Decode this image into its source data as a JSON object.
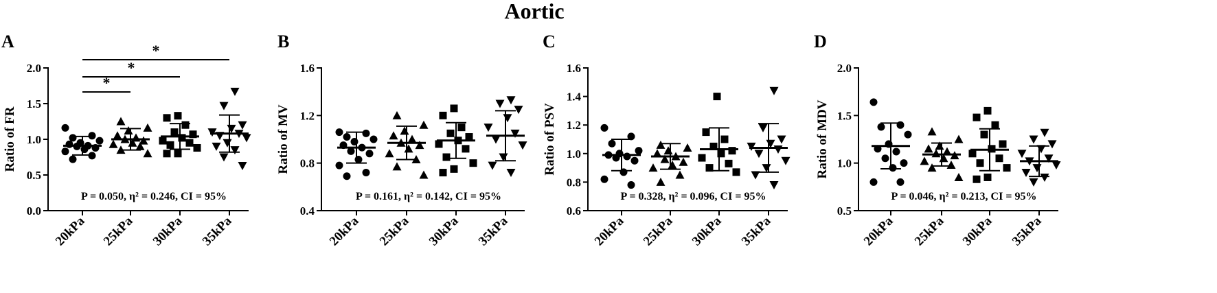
{
  "figure": {
    "title": "Aortic",
    "colors": {
      "ink": "#000000",
      "axis": "#000000",
      "background": "#ffffff"
    }
  },
  "chart_data": [
    {
      "panel": "A",
      "type": "scatter",
      "categories": [
        "20kPa",
        "25kPa",
        "30kPa",
        "35kPa"
      ],
      "markers": [
        "circle",
        "triangle-up",
        "square",
        "triangle-down"
      ],
      "ylabel": "Ratio of FR",
      "ylim": [
        0.0,
        2.0
      ],
      "yticks": [
        "0.0",
        "0.5",
        "1.0",
        "1.5",
        "2.0"
      ],
      "stats_text": "P = 0.050, η² = 0.246, CI = 95%",
      "groups": [
        {
          "mean": 0.91,
          "sd": 0.13,
          "points": [
            1.16,
            1.05,
            1.02,
            0.98,
            0.95,
            0.93,
            0.91,
            0.9,
            0.88,
            0.86,
            0.83,
            0.77,
            0.72
          ]
        },
        {
          "mean": 1.0,
          "sd": 0.15,
          "points": [
            1.25,
            1.16,
            1.12,
            1.05,
            1.02,
            1.0,
            0.98,
            0.95,
            0.93,
            0.9,
            0.85,
            0.8
          ]
        },
        {
          "mean": 1.04,
          "sd": 0.18,
          "points": [
            1.33,
            1.3,
            1.2,
            1.1,
            1.07,
            1.02,
            0.98,
            0.95,
            0.92,
            0.88,
            0.8,
            0.8
          ]
        },
        {
          "mean": 1.08,
          "sd": 0.26,
          "points": [
            1.67,
            1.47,
            1.2,
            1.15,
            1.1,
            1.08,
            1.05,
            1.02,
            0.95,
            0.9,
            0.85,
            0.75,
            0.63
          ]
        }
      ],
      "significance": [
        {
          "from": 0,
          "to": 1,
          "label": "*"
        },
        {
          "from": 0,
          "to": 2,
          "label": "*"
        },
        {
          "from": 0,
          "to": 3,
          "label": "*"
        }
      ]
    },
    {
      "panel": "B",
      "type": "scatter",
      "categories": [
        "20kPa",
        "25kPa",
        "30kPa",
        "35kPa"
      ],
      "markers": [
        "circle",
        "triangle-up",
        "square",
        "triangle-down"
      ],
      "ylabel": "Ratio of MV",
      "ylim": [
        0.4,
        1.6
      ],
      "yticks": [
        "0.4",
        "0.8",
        "1.2",
        "1.6"
      ],
      "stats_text": "P = 0.161, η² = 0.142, CI = 95%",
      "groups": [
        {
          "mean": 0.93,
          "sd": 0.13,
          "points": [
            1.06,
            1.05,
            1.02,
            1.0,
            0.98,
            0.95,
            0.93,
            0.9,
            0.88,
            0.83,
            0.78,
            0.72,
            0.69
          ]
        },
        {
          "mean": 0.97,
          "sd": 0.14,
          "points": [
            1.2,
            1.12,
            1.07,
            1.03,
            1.0,
            0.97,
            0.95,
            0.92,
            0.88,
            0.83,
            0.77,
            0.7
          ]
        },
        {
          "mean": 0.99,
          "sd": 0.15,
          "points": [
            1.26,
            1.2,
            1.1,
            1.05,
            1.02,
            0.99,
            0.96,
            0.92,
            0.85,
            0.8,
            0.75,
            0.72
          ]
        },
        {
          "mean": 1.03,
          "sd": 0.21,
          "points": [
            1.33,
            1.3,
            1.25,
            1.18,
            1.1,
            1.05,
            1.0,
            0.95,
            0.85,
            0.78,
            0.72
          ]
        }
      ],
      "significance": []
    },
    {
      "panel": "C",
      "type": "scatter",
      "categories": [
        "20kPa",
        "25kPa",
        "30kPa",
        "35kPa"
      ],
      "markers": [
        "circle",
        "triangle-up",
        "square",
        "triangle-down"
      ],
      "ylabel": "Ratio of PSV",
      "ylim": [
        0.6,
        1.6
      ],
      "yticks": [
        "0.6",
        "0.8",
        "1.0",
        "1.2",
        "1.4",
        "1.6"
      ],
      "stats_text": "P = 0.328, η² = 0.096, CI = 95%",
      "groups": [
        {
          "mean": 0.99,
          "sd": 0.11,
          "points": [
            1.18,
            1.12,
            1.07,
            1.02,
            1.0,
            0.99,
            0.98,
            0.97,
            0.95,
            0.87,
            0.82,
            0.78
          ]
        },
        {
          "mean": 0.98,
          "sd": 0.09,
          "points": [
            1.06,
            1.04,
            1.02,
            1.0,
            0.98,
            0.96,
            0.94,
            0.92,
            0.9,
            0.85,
            0.8
          ]
        },
        {
          "mean": 1.03,
          "sd": 0.15,
          "points": [
            1.4,
            1.15,
            1.1,
            1.05,
            1.02,
            1.0,
            0.97,
            0.93,
            0.9,
            0.87
          ]
        },
        {
          "mean": 1.04,
          "sd": 0.17,
          "points": [
            1.44,
            1.18,
            1.1,
            1.07,
            1.05,
            1.03,
            1.0,
            0.95,
            0.9,
            0.85,
            0.78
          ]
        }
      ],
      "significance": []
    },
    {
      "panel": "D",
      "type": "scatter",
      "categories": [
        "20kPa",
        "25kPa",
        "30kPa",
        "35kPa"
      ],
      "markers": [
        "circle",
        "triangle-up",
        "square",
        "triangle-down"
      ],
      "ylabel": "Ratio of MDV",
      "ylim": [
        0.5,
        2.0
      ],
      "yticks": [
        "0.5",
        "1.0",
        "1.5",
        "2.0"
      ],
      "stats_text": "P = 0.046, η² = 0.213, CI = 95%",
      "groups": [
        {
          "mean": 1.18,
          "sd": 0.24,
          "points": [
            1.64,
            1.4,
            1.38,
            1.3,
            1.2,
            1.15,
            1.12,
            1.05,
            1.0,
            0.95,
            0.8,
            0.8
          ]
        },
        {
          "mean": 1.09,
          "sd": 0.12,
          "points": [
            1.33,
            1.25,
            1.18,
            1.15,
            1.12,
            1.1,
            1.08,
            1.05,
            1.02,
            0.98,
            0.95,
            0.85
          ]
        },
        {
          "mean": 1.14,
          "sd": 0.22,
          "points": [
            1.55,
            1.48,
            1.4,
            1.3,
            1.2,
            1.15,
            1.1,
            1.05,
            1.0,
            0.95,
            0.85,
            0.83
          ]
        },
        {
          "mean": 1.02,
          "sd": 0.16,
          "points": [
            1.32,
            1.25,
            1.2,
            1.15,
            1.1,
            1.05,
            1.02,
            0.98,
            0.95,
            0.9,
            0.85,
            0.8
          ]
        }
      ],
      "significance": []
    }
  ]
}
